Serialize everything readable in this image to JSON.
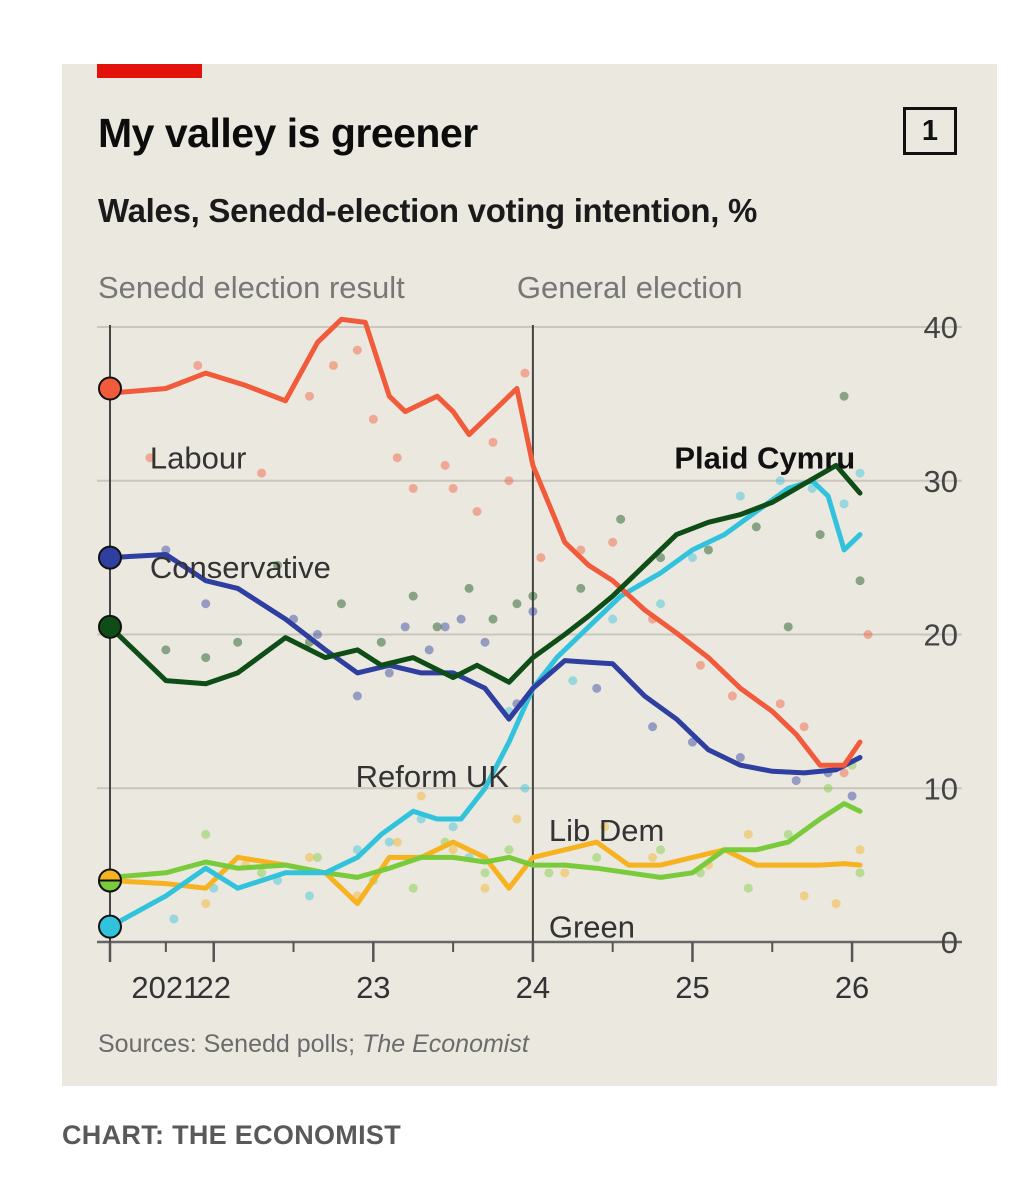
{
  "header": {
    "title": "My valley is greener",
    "chart_number": "1",
    "subtitle": "Wales, Senedd-election voting intention, %"
  },
  "footer": {
    "sources_prefix": "Sources: Senedd polls; ",
    "sources_italic": "The Economist",
    "credit": "CHART: THE ECONOMIST"
  },
  "colors": {
    "panel": "#ebe8df",
    "accent_red": "#e3120b",
    "labour": "#f15a3a",
    "conservative": "#2e3fa0",
    "plaid": "#0e4d16",
    "reform": "#32c3dc",
    "libdem": "#f7b21f",
    "green": "#7acb3c"
  },
  "chart_data": {
    "type": "line",
    "title": "My valley is greener",
    "subtitle": "Wales, Senedd-election voting intention, %",
    "ylim": [
      0,
      40
    ],
    "y_ticks": [
      0,
      10,
      20,
      30,
      40
    ],
    "y_tick_labels": [
      "0",
      "10",
      "20",
      "30",
      "40"
    ],
    "xlim": [
      2021.35,
      2026.15
    ],
    "x_ticks": [
      {
        "x": 2021.35,
        "label": ""
      },
      {
        "x": 2022.0,
        "label": "22"
      },
      {
        "x": 2023.0,
        "label": "23"
      },
      {
        "x": 2024.0,
        "label": "24"
      },
      {
        "x": 2025.0,
        "label": "25"
      },
      {
        "x": 2026.0,
        "label": "26"
      }
    ],
    "x_tick_labels": [
      {
        "x": 2021.7,
        "label": "2021"
      },
      {
        "x": 2022.0,
        "label": "22"
      },
      {
        "x": 2023.0,
        "label": "23"
      },
      {
        "x": 2024.0,
        "label": "24"
      },
      {
        "x": 2025.0,
        "label": "25"
      },
      {
        "x": 2026.0,
        "label": "26"
      }
    ],
    "x_minor_ticks": [
      2021.7,
      2022.5,
      2023.5,
      2024.5,
      2025.5
    ],
    "annotations": [
      {
        "label": "Senedd election result",
        "x": 2021.35
      },
      {
        "label": "General election",
        "x": 2024.0
      }
    ],
    "series": [
      {
        "name": "Labour",
        "label": "Labour",
        "color": "#f15a3a",
        "label_bold": false,
        "result": 36,
        "x": [
          2021.35,
          2021.7,
          2021.95,
          2022.2,
          2022.45,
          2022.65,
          2022.8,
          2022.95,
          2023.1,
          2023.2,
          2023.3,
          2023.4,
          2023.5,
          2023.6,
          2023.7,
          2023.8,
          2023.9,
          2024.0,
          2024.2,
          2024.35,
          2024.5,
          2024.7,
          2024.9,
          2025.1,
          2025.3,
          2025.5,
          2025.65,
          2025.8,
          2025.95,
          2026.05
        ],
        "y": [
          35.7,
          36,
          37,
          36.2,
          35.2,
          39,
          40.5,
          40.3,
          35.5,
          34.5,
          35,
          35.5,
          34.5,
          33,
          34,
          35,
          36,
          31,
          26,
          24.5,
          23.5,
          21.6,
          20.1,
          18.5,
          16.5,
          15,
          13.5,
          11.5,
          11.5,
          13
        ],
        "label_pos": {
          "x": 2021.6,
          "y": 31.5,
          "anchor": "start"
        }
      },
      {
        "name": "Conservative",
        "label": "Conservative",
        "color": "#2e3fa0",
        "label_bold": false,
        "result": 25,
        "x": [
          2021.35,
          2021.7,
          2021.95,
          2022.15,
          2022.45,
          2022.7,
          2022.9,
          2023.1,
          2023.3,
          2023.5,
          2023.7,
          2023.85,
          2024.0,
          2024.2,
          2024.35,
          2024.5,
          2024.7,
          2024.9,
          2025.1,
          2025.3,
          2025.5,
          2025.7,
          2025.9,
          2026.05
        ],
        "y": [
          25,
          25.2,
          23.5,
          23,
          21,
          19,
          17.5,
          18,
          17.5,
          17.5,
          16.5,
          14.5,
          16.5,
          18.3,
          18.2,
          18.1,
          16,
          14.5,
          12.5,
          11.5,
          11.1,
          11,
          11.2,
          12
        ],
        "label_pos": {
          "x": 2021.6,
          "y": 24.4,
          "anchor": "start"
        }
      },
      {
        "name": "Plaid Cymru",
        "label": "Plaid Cymru",
        "color": "#0e4d16",
        "label_bold": true,
        "result": 20.5,
        "x": [
          2021.35,
          2021.7,
          2021.95,
          2022.15,
          2022.45,
          2022.7,
          2022.9,
          2023.05,
          2023.25,
          2023.5,
          2023.65,
          2023.85,
          2024.0,
          2024.2,
          2024.35,
          2024.5,
          2024.7,
          2024.9,
          2025.1,
          2025.3,
          2025.5,
          2025.7,
          2025.9,
          2026.05
        ],
        "y": [
          20.5,
          17,
          16.8,
          17.5,
          19.8,
          18.5,
          19,
          18,
          18.5,
          17.2,
          18,
          16.9,
          18.5,
          20,
          21.2,
          22.5,
          24.5,
          26.5,
          27.3,
          27.8,
          28.6,
          29.8,
          31,
          29.2
        ],
        "label_pos": {
          "x": 2026.02,
          "y": 31.5,
          "anchor": "end"
        }
      },
      {
        "name": "Reform UK",
        "label": "Reform UK",
        "color": "#32c3dc",
        "label_bold": false,
        "result": 1,
        "x": [
          2021.35,
          2021.7,
          2021.95,
          2022.15,
          2022.45,
          2022.7,
          2022.9,
          2023.05,
          2023.25,
          2023.4,
          2023.55,
          2023.7,
          2023.85,
          2024.0,
          2024.15,
          2024.35,
          2024.55,
          2024.8,
          2025.0,
          2025.2,
          2025.4,
          2025.6,
          2025.75,
          2025.85,
          2025.95,
          2026.05
        ],
        "y": [
          1,
          3,
          4.8,
          3.5,
          4.5,
          4.5,
          5.5,
          7,
          8.5,
          8,
          8,
          10,
          13,
          16.5,
          18.5,
          20.5,
          22.5,
          24,
          25.5,
          26.5,
          28,
          29.5,
          30,
          29,
          25.5,
          26.5
        ],
        "label_pos": {
          "x": 2023.85,
          "y": 10.8,
          "anchor": "end"
        }
      },
      {
        "name": "Lib Dem",
        "label": "Lib Dem",
        "color": "#f7b21f",
        "label_bold": false,
        "result": 4,
        "x": [
          2021.35,
          2021.7,
          2021.95,
          2022.15,
          2022.45,
          2022.7,
          2022.9,
          2023.1,
          2023.3,
          2023.5,
          2023.7,
          2023.85,
          2024.0,
          2024.2,
          2024.4,
          2024.6,
          2024.8,
          2025.0,
          2025.2,
          2025.4,
          2025.6,
          2025.8,
          2025.95,
          2026.05
        ],
        "y": [
          4,
          3.8,
          3.5,
          5.5,
          5,
          4.5,
          2.5,
          5.5,
          5.5,
          6.5,
          5.5,
          3.5,
          5.5,
          6,
          6.5,
          5,
          5,
          5.5,
          6,
          5,
          5,
          5,
          5.1,
          5
        ],
        "label_pos": {
          "x": 2024.1,
          "y": 7.3,
          "anchor": "start"
        }
      },
      {
        "name": "Green",
        "label": "Green",
        "color": "#7acb3c",
        "label_bold": false,
        "result": 4,
        "x": [
          2021.35,
          2021.7,
          2021.95,
          2022.15,
          2022.45,
          2022.7,
          2022.9,
          2023.1,
          2023.3,
          2023.5,
          2023.7,
          2023.85,
          2024.0,
          2024.2,
          2024.4,
          2024.6,
          2024.8,
          2025.0,
          2025.2,
          2025.4,
          2025.6,
          2025.8,
          2025.95,
          2026.05
        ],
        "y": [
          4.2,
          4.5,
          5.2,
          4.8,
          5,
          4.5,
          4.2,
          4.8,
          5.5,
          5.5,
          5.2,
          5.5,
          5,
          5,
          4.8,
          4.5,
          4.2,
          4.5,
          6,
          6,
          6.5,
          8,
          9,
          8.5
        ],
        "label_pos": {
          "x": 2024.1,
          "y": 1.0,
          "anchor": "start"
        }
      }
    ],
    "poll_dots": [
      {
        "series": "Labour",
        "points": [
          [
            2021.6,
            31.5
          ],
          [
            2021.9,
            37.5
          ],
          [
            2022.3,
            30.5
          ],
          [
            2022.6,
            35.5
          ],
          [
            2022.75,
            37.5
          ],
          [
            2022.9,
            38.5
          ],
          [
            2023.0,
            34
          ],
          [
            2023.15,
            31.5
          ],
          [
            2023.25,
            29.5
          ],
          [
            2023.45,
            31
          ],
          [
            2023.5,
            29.5
          ],
          [
            2023.65,
            28
          ],
          [
            2023.75,
            32.5
          ],
          [
            2023.85,
            30
          ],
          [
            2023.95,
            37
          ],
          [
            2024.05,
            25
          ],
          [
            2024.3,
            25.5
          ],
          [
            2024.5,
            26
          ],
          [
            2024.75,
            21
          ],
          [
            2025.05,
            18
          ],
          [
            2025.25,
            16
          ],
          [
            2025.55,
            15.5
          ],
          [
            2025.7,
            14
          ],
          [
            2025.95,
            11
          ],
          [
            2026.1,
            20
          ]
        ]
      },
      {
        "series": "Conservative",
        "points": [
          [
            2021.7,
            25.5
          ],
          [
            2021.95,
            22
          ],
          [
            2022.5,
            21
          ],
          [
            2022.65,
            20
          ],
          [
            2022.9,
            16
          ],
          [
            2023.1,
            17.5
          ],
          [
            2023.2,
            20.5
          ],
          [
            2023.35,
            19
          ],
          [
            2023.45,
            20.5
          ],
          [
            2023.55,
            21
          ],
          [
            2023.7,
            19.5
          ],
          [
            2023.9,
            15.5
          ],
          [
            2024.0,
            21.5
          ],
          [
            2024.4,
            16.5
          ],
          [
            2024.75,
            14
          ],
          [
            2025.0,
            13
          ],
          [
            2025.3,
            12
          ],
          [
            2025.65,
            10.5
          ],
          [
            2025.85,
            11
          ],
          [
            2026.0,
            9.5
          ]
        ]
      },
      {
        "series": "Plaid Cymru",
        "points": [
          [
            2021.7,
            19
          ],
          [
            2021.95,
            18.5
          ],
          [
            2022.15,
            19.5
          ],
          [
            2022.4,
            24.5
          ],
          [
            2022.6,
            19.5
          ],
          [
            2022.8,
            22
          ],
          [
            2023.05,
            19.5
          ],
          [
            2023.25,
            22.5
          ],
          [
            2023.4,
            20.5
          ],
          [
            2023.6,
            23
          ],
          [
            2023.75,
            21
          ],
          [
            2023.9,
            22
          ],
          [
            2024.0,
            22.5
          ],
          [
            2024.3,
            23
          ],
          [
            2024.55,
            27.5
          ],
          [
            2024.8,
            25
          ],
          [
            2025.1,
            25.5
          ],
          [
            2025.4,
            27
          ],
          [
            2025.6,
            20.5
          ],
          [
            2025.8,
            26.5
          ],
          [
            2025.95,
            35.5
          ],
          [
            2026.05,
            23.5
          ]
        ]
      },
      {
        "series": "Reform UK",
        "points": [
          [
            2021.75,
            1.5
          ],
          [
            2022.0,
            3.5
          ],
          [
            2022.4,
            4
          ],
          [
            2022.6,
            3
          ],
          [
            2022.9,
            6
          ],
          [
            2023.1,
            6.5
          ],
          [
            2023.3,
            8
          ],
          [
            2023.5,
            7.5
          ],
          [
            2023.6,
            5.5
          ],
          [
            2023.85,
            15
          ],
          [
            2023.95,
            10
          ],
          [
            2024.25,
            17
          ],
          [
            2024.5,
            21
          ],
          [
            2024.8,
            22
          ],
          [
            2025.0,
            25
          ],
          [
            2025.3,
            29
          ],
          [
            2025.55,
            30
          ],
          [
            2025.75,
            29.5
          ],
          [
            2025.95,
            28.5
          ],
          [
            2026.05,
            30.5
          ]
        ]
      },
      {
        "series": "Lib Dem",
        "points": [
          [
            2021.95,
            2.5
          ],
          [
            2022.2,
            5
          ],
          [
            2022.6,
            5.5
          ],
          [
            2022.9,
            3
          ],
          [
            2023.15,
            6.5
          ],
          [
            2023.3,
            9.5
          ],
          [
            2023.5,
            6
          ],
          [
            2023.7,
            3.5
          ],
          [
            2023.9,
            8
          ],
          [
            2024.2,
            4.5
          ],
          [
            2024.45,
            7.5
          ],
          [
            2024.75,
            5.5
          ],
          [
            2025.1,
            5
          ],
          [
            2025.35,
            7
          ],
          [
            2025.7,
            3
          ],
          [
            2025.9,
            2.5
          ],
          [
            2026.05,
            6
          ]
        ]
      },
      {
        "series": "Green",
        "points": [
          [
            2021.95,
            7
          ],
          [
            2022.3,
            4.5
          ],
          [
            2022.65,
            5.5
          ],
          [
            2023.0,
            4
          ],
          [
            2023.25,
            3.5
          ],
          [
            2023.45,
            6.5
          ],
          [
            2023.7,
            4.5
          ],
          [
            2023.85,
            6
          ],
          [
            2024.1,
            4.5
          ],
          [
            2024.4,
            5.5
          ],
          [
            2024.8,
            6
          ],
          [
            2025.05,
            4.5
          ],
          [
            2025.35,
            3.5
          ],
          [
            2025.6,
            7
          ],
          [
            2025.85,
            10
          ],
          [
            2026.0,
            11.5
          ],
          [
            2026.05,
            4.5
          ]
        ]
      }
    ]
  }
}
